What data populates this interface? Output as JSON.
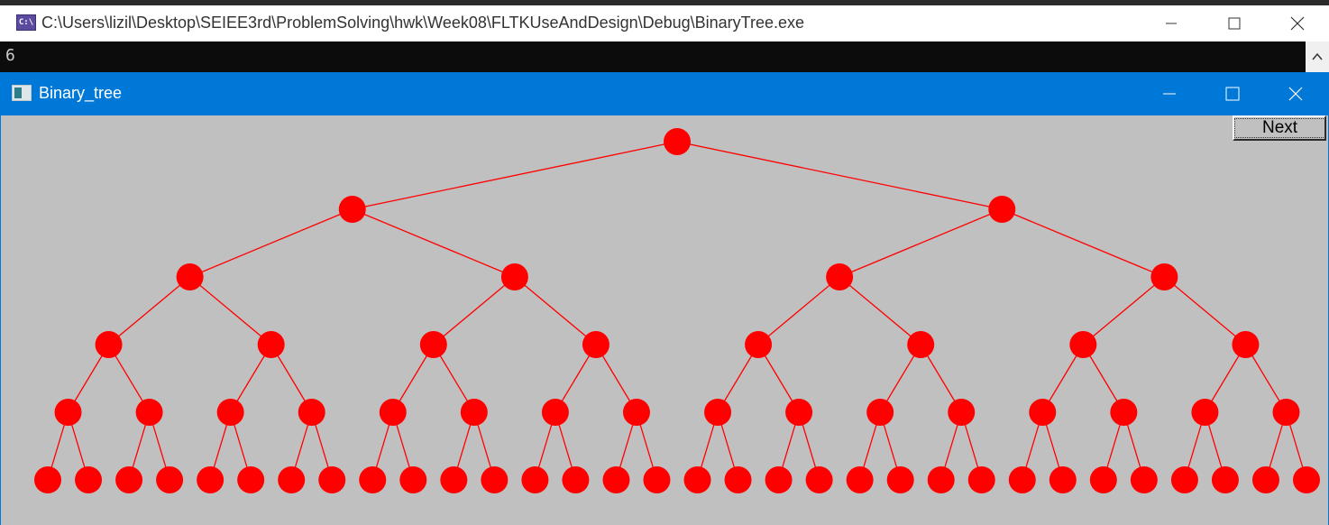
{
  "console": {
    "title": "C:\\Users\\lizil\\Desktop\\SEIEE3rd\\ProblemSolving\\hwk\\Week08\\FLTKUseAndDesign\\Debug\\BinaryTree.exe",
    "icon_label": "C:\\",
    "output": "6"
  },
  "fltk": {
    "title": "Binary_tree",
    "next_label": "Next"
  },
  "tree": {
    "levels": 6,
    "node_color": "#ff0000",
    "edge_color": "#ff0000",
    "background": "#c0c0c0"
  }
}
